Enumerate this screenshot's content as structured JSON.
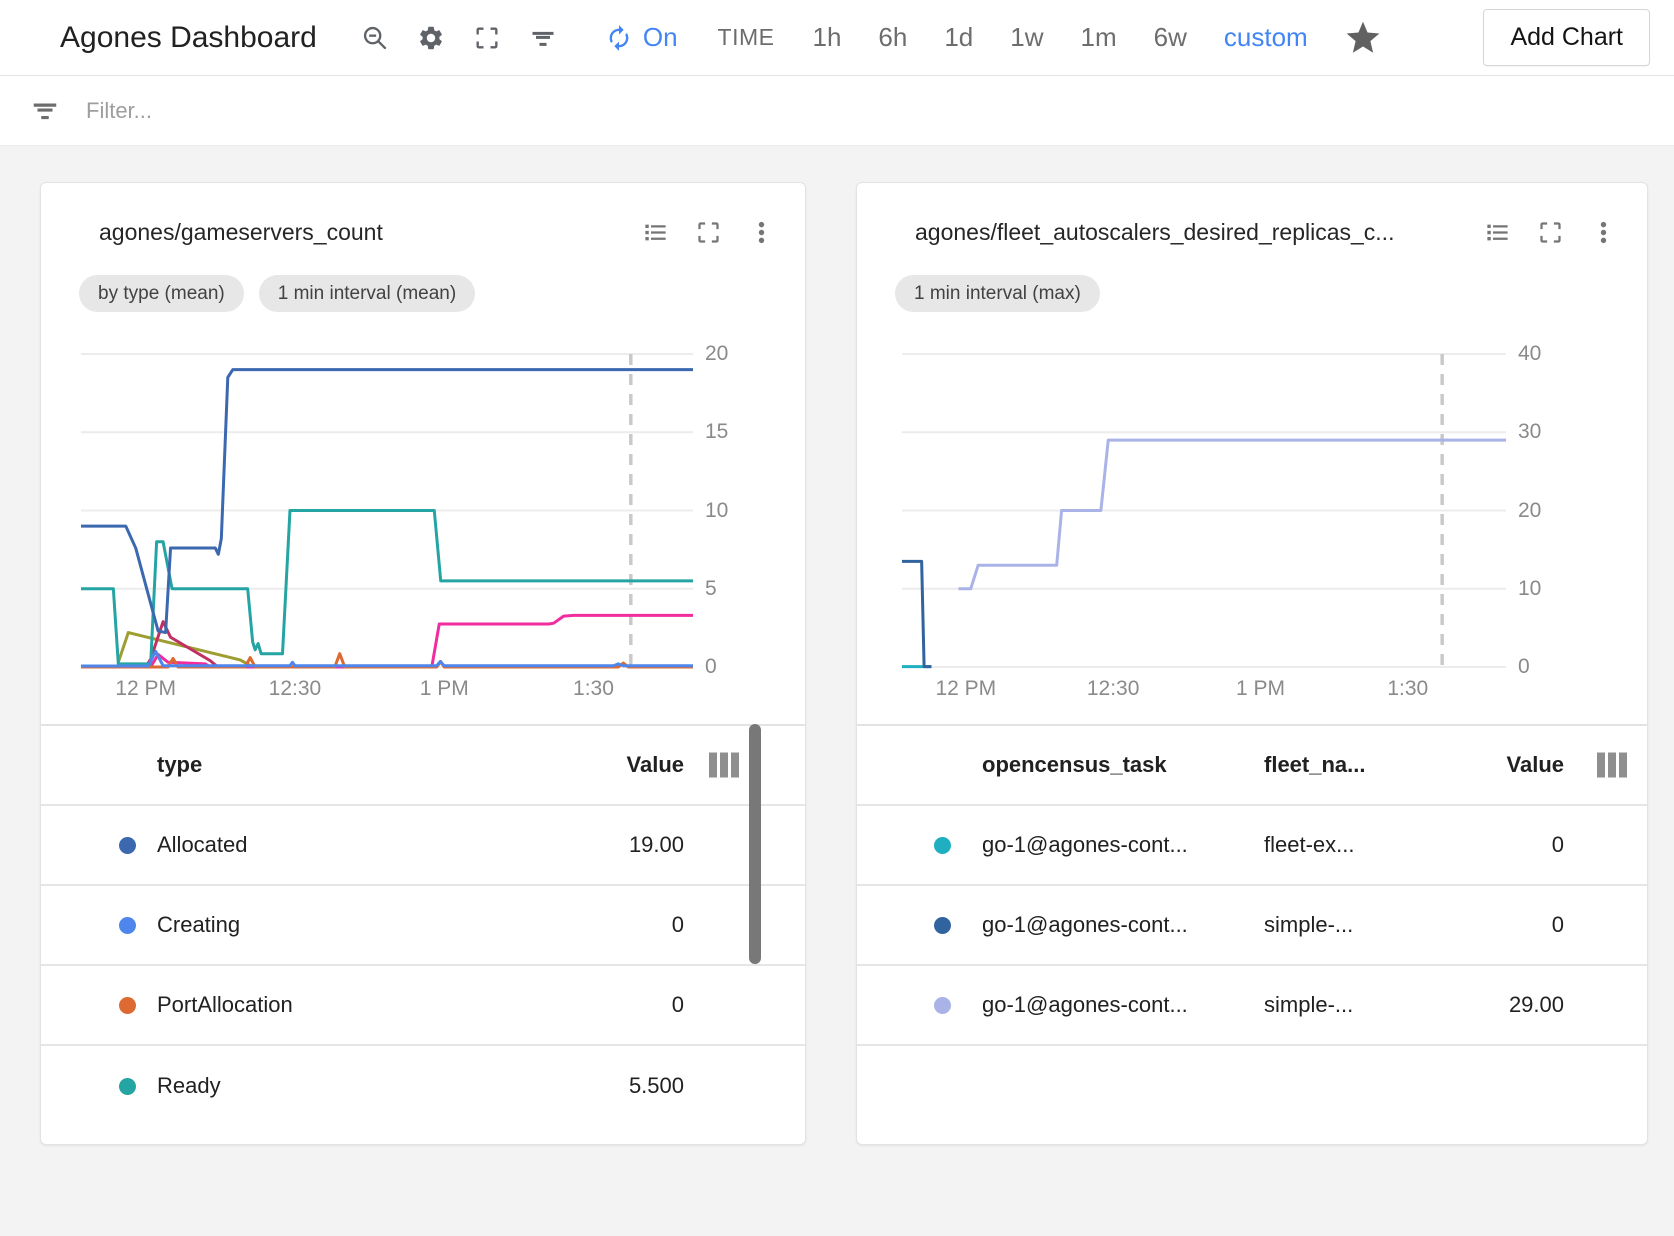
{
  "header": {
    "title": "Agones Dashboard",
    "refresh_state": "On",
    "time_label": "TIME",
    "time_ranges": [
      "1h",
      "6h",
      "1d",
      "1w",
      "1m",
      "6w"
    ],
    "custom_label": "custom",
    "add_chart_label": "Add Chart",
    "accent_color": "#4285f4"
  },
  "filter_bar": {
    "placeholder": "Filter..."
  },
  "chart_data": [
    {
      "type": "line",
      "title": "agones/gameservers_count",
      "chips": [
        "by type (mean)",
        "1 min interval (mean)"
      ],
      "t_max": 123,
      "x_ticks": [
        {
          "t": 13,
          "label": "12 PM"
        },
        {
          "t": 43,
          "label": "12:30"
        },
        {
          "t": 73,
          "label": "1 PM"
        },
        {
          "t": 103,
          "label": "1:30"
        }
      ],
      "ylim": [
        0,
        20
      ],
      "y_ticks": [
        0,
        5,
        10,
        15,
        20
      ],
      "marker_t": 110.5,
      "gridline_color": "#ececec",
      "marker_color": "#c9c9c9",
      "series": [
        {
          "name": "unlabeled-olive",
          "color": "#9d9d31",
          "points": [
            [
              7.5,
              0.3
            ],
            [
              9.5,
              2.2
            ],
            [
              32,
              0.45
            ],
            [
              34,
              0.1
            ],
            [
              35,
              0
            ]
          ]
        },
        {
          "name": "unlabeled-crimson",
          "color": "#c22f63",
          "points": [
            [
              13,
              0
            ],
            [
              14,
              0.5
            ],
            [
              16.5,
              2.9
            ],
            [
              18,
              1.9
            ],
            [
              26,
              0.4
            ],
            [
              27.5,
              0
            ]
          ]
        },
        {
          "name": "unlabeled-magenta",
          "color": "#f02c9e",
          "points": [
            [
              0,
              0
            ],
            [
              14,
              0
            ],
            [
              15.5,
              0.8
            ],
            [
              17.5,
              0.3
            ],
            [
              25,
              0.2
            ],
            [
              26,
              0
            ],
            [
              70.5,
              0
            ],
            [
              72,
              2.75
            ],
            [
              94,
              2.75
            ],
            [
              95,
              2.8
            ],
            [
              97,
              3.25
            ],
            [
              99,
              3.3
            ],
            [
              123,
              3.3
            ]
          ]
        },
        {
          "name": "PortAllocation",
          "color": "#dd6a33",
          "points": [
            [
              0,
              0
            ],
            [
              17.5,
              0
            ],
            [
              18.5,
              0.55
            ],
            [
              19.5,
              0
            ],
            [
              33,
              0
            ],
            [
              34,
              0.6
            ],
            [
              35,
              0
            ],
            [
              51,
              0
            ],
            [
              52,
              0.85
            ],
            [
              53,
              0
            ],
            [
              71.5,
              0
            ],
            [
              72.3,
              0.35
            ],
            [
              73,
              0
            ],
            [
              108,
              0
            ],
            [
              109,
              0.25
            ],
            [
              110,
              0
            ],
            [
              123,
              0
            ]
          ]
        },
        {
          "name": "Ready",
          "color": "#25a4a4",
          "points": [
            [
              0,
              5
            ],
            [
              6.5,
              5
            ],
            [
              7.5,
              0.2
            ],
            [
              14,
              0.2
            ],
            [
              15.2,
              8
            ],
            [
              16.5,
              8
            ],
            [
              18.3,
              5
            ],
            [
              33.5,
              5
            ],
            [
              34.5,
              1.6
            ],
            [
              35,
              1.1
            ],
            [
              35.6,
              1.5
            ],
            [
              36.2,
              0.85
            ],
            [
              40.5,
              0.85
            ],
            [
              42,
              10
            ],
            [
              71,
              10
            ],
            [
              72.3,
              5.5
            ],
            [
              123,
              5.5
            ]
          ]
        },
        {
          "name": "Allocated",
          "color": "#3b68af",
          "points": [
            [
              0,
              9
            ],
            [
              9,
              9
            ],
            [
              11,
              7.6
            ],
            [
              15.5,
              2.3
            ],
            [
              17,
              2.2
            ],
            [
              18,
              7.6
            ],
            [
              27,
              7.6
            ],
            [
              27.6,
              7.2
            ],
            [
              28.2,
              8.2
            ],
            [
              29.5,
              18.5
            ],
            [
              30.5,
              19
            ],
            [
              123,
              19
            ]
          ]
        },
        {
          "name": "Creating",
          "color": "#4e86ec",
          "points": [
            [
              0,
              0.06
            ],
            [
              13.5,
              0.06
            ],
            [
              15,
              1.0
            ],
            [
              16.5,
              0.08
            ],
            [
              42,
              0.08
            ],
            [
              42.5,
              0.3
            ],
            [
              43,
              0.08
            ],
            [
              71.5,
              0.08
            ],
            [
              72.2,
              0.35
            ],
            [
              73,
              0.08
            ],
            [
              107,
              0.08
            ],
            [
              108,
              0.2
            ],
            [
              109,
              0.08
            ],
            [
              123,
              0.08
            ]
          ]
        }
      ],
      "legend": {
        "columns": [
          "type",
          "Value"
        ],
        "rows": [
          {
            "label": "Allocated",
            "value": "19.00",
            "color": "#3b68af"
          },
          {
            "label": "Creating",
            "value": "0",
            "color": "#4e86ec"
          },
          {
            "label": "PortAllocation",
            "value": "0",
            "color": "#dd6a33"
          },
          {
            "label": "Ready",
            "value": "5.500",
            "color": "#25a4a4"
          }
        ]
      }
    },
    {
      "type": "line",
      "title": "agones/fleet_autoscalers_desired_replicas_c...",
      "chips": [
        "1 min interval (max)"
      ],
      "t_max": 123,
      "x_ticks": [
        {
          "t": 13,
          "label": "12 PM"
        },
        {
          "t": 43,
          "label": "12:30"
        },
        {
          "t": 73,
          "label": "1 PM"
        },
        {
          "t": 103,
          "label": "1:30"
        }
      ],
      "ylim": [
        0,
        40
      ],
      "y_ticks": [
        0,
        10,
        20,
        30,
        40
      ],
      "marker_t": 110,
      "gridline_color": "#ececec",
      "marker_color": "#c9c9c9",
      "series": [
        {
          "name": "fleet-ex...",
          "color": "#1fafc0",
          "points": [
            [
              0,
              0.05
            ],
            [
              6,
              0.05
            ]
          ]
        },
        {
          "name": "simple-...",
          "color": "#31649f",
          "points": [
            [
              0,
              13.5
            ],
            [
              4,
              13.5
            ],
            [
              4.5,
              0.05
            ],
            [
              6,
              0.05
            ]
          ]
        },
        {
          "name": "simple-... (autoscaler)",
          "color": "#a9b3e8",
          "points": [
            [
              11.5,
              10
            ],
            [
              14,
              10
            ],
            [
              15.5,
              13
            ],
            [
              31.5,
              13
            ],
            [
              32.5,
              20
            ],
            [
              40.5,
              20
            ],
            [
              42,
              29
            ],
            [
              123,
              29
            ]
          ]
        }
      ],
      "legend": {
        "columns": [
          "opencensus_task",
          "fleet_na...",
          "Value"
        ],
        "rows": [
          {
            "task": "go-1@agones-cont...",
            "fleet": "fleet-ex...",
            "value": "0",
            "color": "#1fafc0"
          },
          {
            "task": "go-1@agones-cont...",
            "fleet": "simple-...",
            "value": "0",
            "color": "#31649f"
          },
          {
            "task": "go-1@agones-cont...",
            "fleet": "simple-...",
            "value": "29.00",
            "color": "#a9b3e8"
          }
        ]
      }
    }
  ]
}
